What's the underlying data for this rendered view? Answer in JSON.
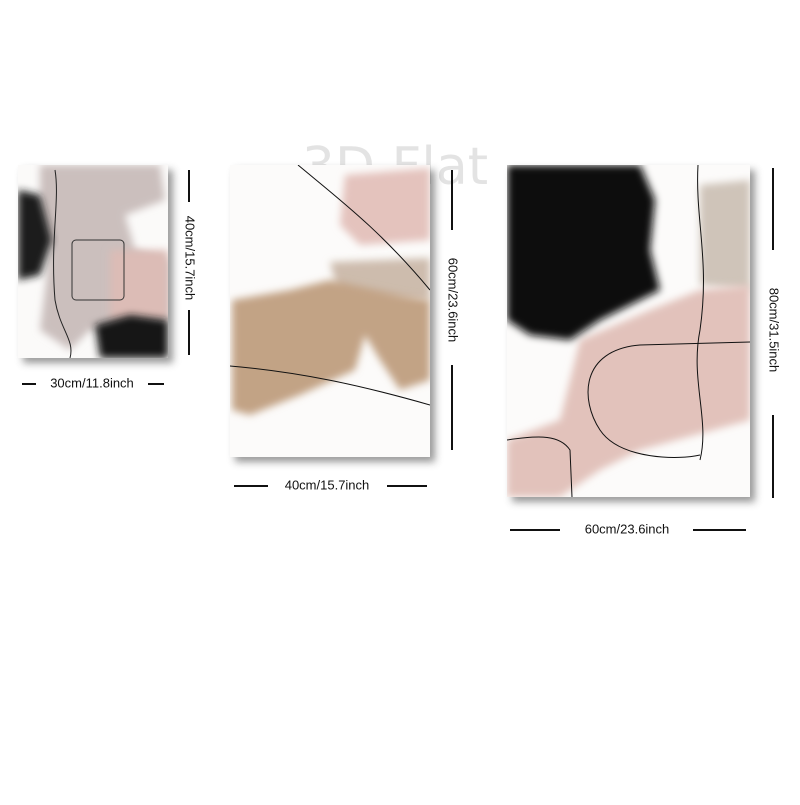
{
  "watermark": "3D Flat",
  "panels": [
    {
      "height_label": "40cm/15.7inch",
      "width_label": "30cm/11.8inch"
    },
    {
      "height_label": "60cm/23.6inch",
      "width_label": "40cm/15.7inch"
    },
    {
      "height_label": "80cm/31.5inch",
      "width_label": "60cm/23.6inch"
    }
  ]
}
